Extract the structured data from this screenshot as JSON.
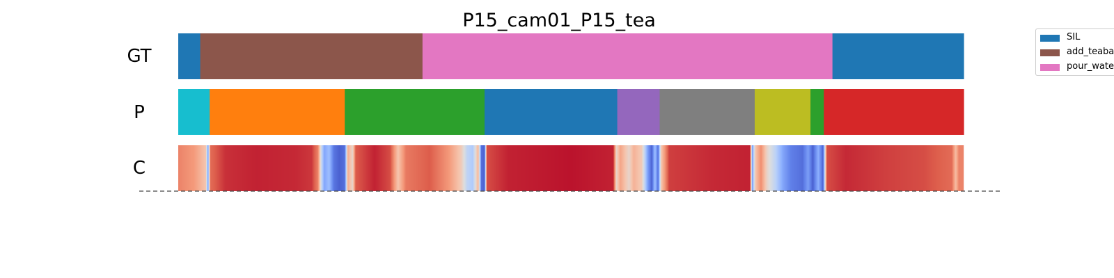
{
  "chart_data": {
    "type": "segmentation",
    "title": "P15_cam01_P15_tea",
    "x_range": [
      0,
      1
    ],
    "legend": {
      "placement": "top-right",
      "entries": [
        {
          "label": "SIL",
          "color": "#1f77b4"
        },
        {
          "label": "add_teabag",
          "color": "#8c564b"
        },
        {
          "label": "pour_water",
          "color": "#e377c2"
        }
      ]
    },
    "rows": [
      {
        "label": "GT",
        "kind": "segments",
        "segments": [
          {
            "start": 0.0,
            "end": 0.028,
            "color": "#1f77b4"
          },
          {
            "start": 0.028,
            "end": 0.311,
            "color": "#8c564b"
          },
          {
            "start": 0.311,
            "end": 0.833,
            "color": "#e377c2"
          },
          {
            "start": 0.833,
            "end": 1.0,
            "color": "#1f77b4"
          }
        ]
      },
      {
        "label": "P",
        "kind": "segments",
        "segments": [
          {
            "start": 0.0,
            "end": 0.04,
            "color": "#17becf"
          },
          {
            "start": 0.04,
            "end": 0.212,
            "color": "#ff7f0e"
          },
          {
            "start": 0.212,
            "end": 0.39,
            "color": "#2ca02c"
          },
          {
            "start": 0.39,
            "end": 0.559,
            "color": "#1f77b4"
          },
          {
            "start": 0.559,
            "end": 0.613,
            "color": "#9467bd"
          },
          {
            "start": 0.613,
            "end": 0.734,
            "color": "#7f7f7f"
          },
          {
            "start": 0.734,
            "end": 0.805,
            "color": "#bcbd22"
          },
          {
            "start": 0.805,
            "end": 0.822,
            "color": "#2ca02c"
          },
          {
            "start": 0.822,
            "end": 1.0,
            "color": "#d62728"
          }
        ]
      },
      {
        "label": "C",
        "kind": "confidence",
        "colormap": "coolwarm",
        "value_range": [
          0,
          1
        ],
        "keypoints": [
          {
            "x": 0.0,
            "v": 0.8
          },
          {
            "x": 0.02,
            "v": 0.75
          },
          {
            "x": 0.035,
            "v": 0.62
          },
          {
            "x": 0.038,
            "v": 0.2
          },
          {
            "x": 0.041,
            "v": 0.85
          },
          {
            "x": 0.06,
            "v": 0.94
          },
          {
            "x": 0.1,
            "v": 0.96
          },
          {
            "x": 0.15,
            "v": 0.95
          },
          {
            "x": 0.17,
            "v": 0.93
          },
          {
            "x": 0.178,
            "v": 0.8
          },
          {
            "x": 0.182,
            "v": 0.45
          },
          {
            "x": 0.186,
            "v": 0.22
          },
          {
            "x": 0.192,
            "v": 0.3
          },
          {
            "x": 0.198,
            "v": 0.1
          },
          {
            "x": 0.205,
            "v": 0.05
          },
          {
            "x": 0.212,
            "v": 0.08
          },
          {
            "x": 0.216,
            "v": 0.7
          },
          {
            "x": 0.222,
            "v": 0.55
          },
          {
            "x": 0.226,
            "v": 0.88
          },
          {
            "x": 0.25,
            "v": 0.96
          },
          {
            "x": 0.27,
            "v": 0.9
          },
          {
            "x": 0.28,
            "v": 0.62
          },
          {
            "x": 0.29,
            "v": 0.82
          },
          {
            "x": 0.32,
            "v": 0.88
          },
          {
            "x": 0.345,
            "v": 0.75
          },
          {
            "x": 0.36,
            "v": 0.6
          },
          {
            "x": 0.368,
            "v": 0.4
          },
          {
            "x": 0.375,
            "v": 0.35
          },
          {
            "x": 0.382,
            "v": 0.68
          },
          {
            "x": 0.386,
            "v": 0.08
          },
          {
            "x": 0.39,
            "v": 0.05
          },
          {
            "x": 0.393,
            "v": 0.9
          },
          {
            "x": 0.42,
            "v": 0.96
          },
          {
            "x": 0.5,
            "v": 0.98
          },
          {
            "x": 0.554,
            "v": 0.96
          },
          {
            "x": 0.558,
            "v": 0.55
          },
          {
            "x": 0.563,
            "v": 0.72
          },
          {
            "x": 0.574,
            "v": 0.55
          },
          {
            "x": 0.58,
            "v": 0.68
          },
          {
            "x": 0.59,
            "v": 0.6
          },
          {
            "x": 0.598,
            "v": 0.2
          },
          {
            "x": 0.603,
            "v": 0.05
          },
          {
            "x": 0.607,
            "v": 0.3
          },
          {
            "x": 0.611,
            "v": 0.08
          },
          {
            "x": 0.615,
            "v": 0.62
          },
          {
            "x": 0.625,
            "v": 0.92
          },
          {
            "x": 0.68,
            "v": 0.95
          },
          {
            "x": 0.728,
            "v": 0.96
          },
          {
            "x": 0.731,
            "v": 0.2
          },
          {
            "x": 0.735,
            "v": 0.62
          },
          {
            "x": 0.742,
            "v": 0.78
          },
          {
            "x": 0.75,
            "v": 0.55
          },
          {
            "x": 0.76,
            "v": 0.4
          },
          {
            "x": 0.77,
            "v": 0.22
          },
          {
            "x": 0.78,
            "v": 0.12
          },
          {
            "x": 0.795,
            "v": 0.08
          },
          {
            "x": 0.802,
            "v": 0.2
          },
          {
            "x": 0.808,
            "v": 0.05
          },
          {
            "x": 0.815,
            "v": 0.25
          },
          {
            "x": 0.821,
            "v": 0.05
          },
          {
            "x": 0.826,
            "v": 0.9
          },
          {
            "x": 0.85,
            "v": 0.95
          },
          {
            "x": 0.9,
            "v": 0.92
          },
          {
            "x": 0.95,
            "v": 0.9
          },
          {
            "x": 0.985,
            "v": 0.85
          },
          {
            "x": 0.99,
            "v": 0.65
          },
          {
            "x": 0.994,
            "v": 0.8
          },
          {
            "x": 1.0,
            "v": 0.8
          }
        ]
      }
    ]
  }
}
